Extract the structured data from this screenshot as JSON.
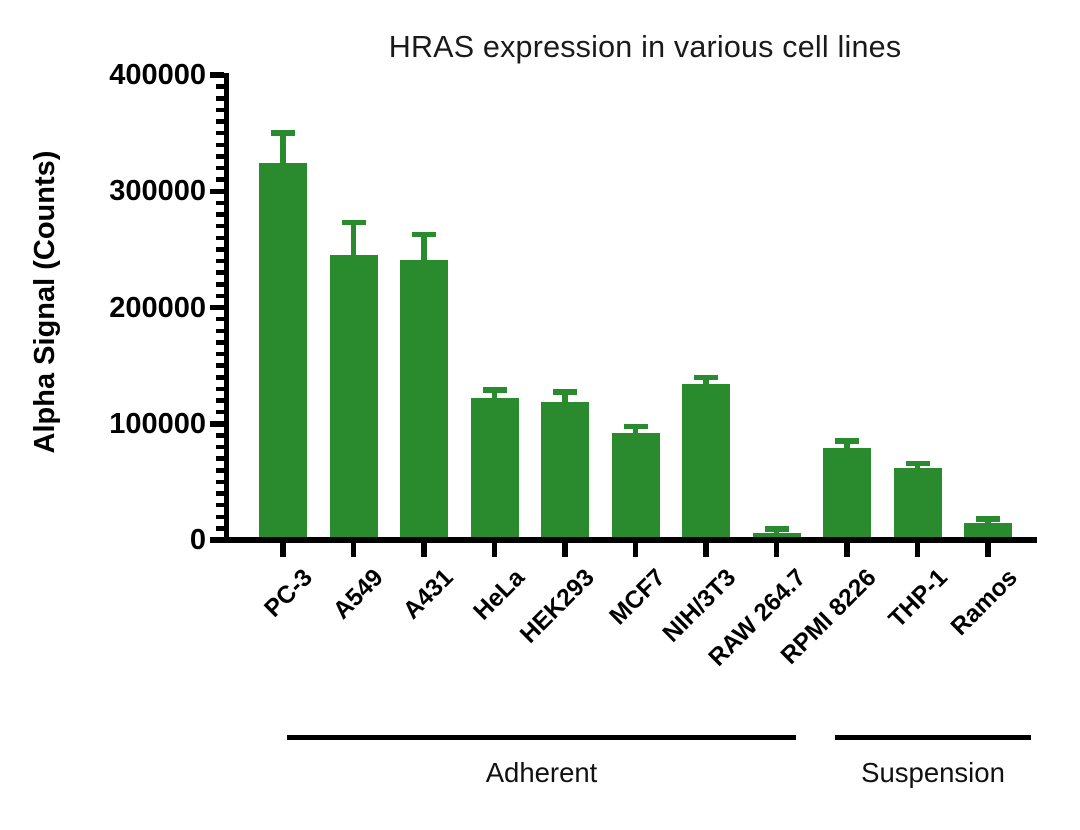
{
  "page": {
    "background": "#ffffff"
  },
  "chart_data": {
    "type": "bar",
    "title": "HRAS expression in various cell lines",
    "ylabel": "Alpha Signal (Counts)",
    "xlabel": "",
    "ylim": [
      0,
      400000
    ],
    "yticks": [
      {
        "value": 0,
        "label": "0"
      },
      {
        "value": 100000,
        "label": "100000"
      },
      {
        "value": 200000,
        "label": "200000"
      },
      {
        "value": 300000,
        "label": "300000"
      },
      {
        "value": 400000,
        "label": "400000"
      }
    ],
    "minor_tick_step": 10000,
    "grid": false,
    "legend": null,
    "bar_color": "#2a8b2e",
    "error_bar_color": "#2a8b2e",
    "error_bar_style": "mean + SD, upper only, with cap",
    "categories": [
      "PC-3",
      "A549",
      "A431",
      "HeLa",
      "HEK293",
      "MCF7",
      "NIH/3T3",
      "RAW 264.7",
      "RPMI 8226",
      "THP-1",
      "Ramos"
    ],
    "values": [
      324000,
      245000,
      241000,
      122000,
      119000,
      92000,
      134000,
      6000,
      79000,
      62000,
      14500
    ],
    "errors": [
      26000,
      28000,
      22000,
      7000,
      8500,
      5500,
      6000,
      3500,
      6000,
      4000,
      3500
    ],
    "groups": [
      {
        "label": "Adherent",
        "start_index": 0,
        "end_index": 7
      },
      {
        "label": "Suspension",
        "start_index": 8,
        "end_index": 10
      }
    ]
  }
}
